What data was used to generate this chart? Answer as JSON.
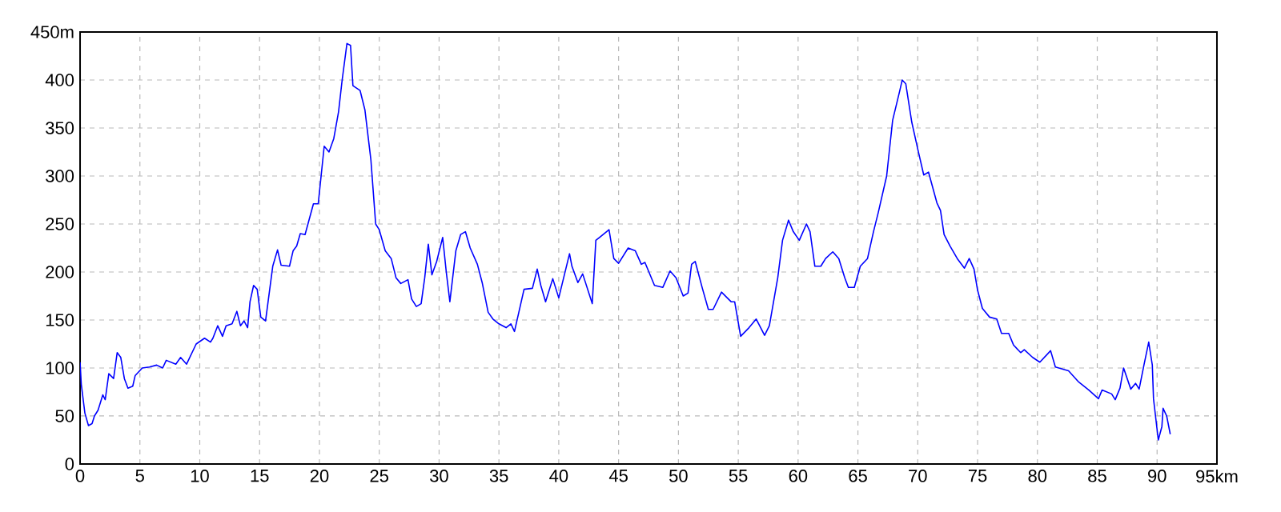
{
  "chart_data": {
    "type": "line",
    "grid": true,
    "marker": "none",
    "line_style": "solid",
    "xlim": [
      0,
      95
    ],
    "ylim": [
      0,
      450
    ],
    "xticks": [
      0,
      5,
      10,
      15,
      20,
      25,
      30,
      35,
      40,
      45,
      50,
      55,
      60,
      65,
      70,
      75,
      80,
      85,
      90,
      {
        "value": 95,
        "label": "95km"
      }
    ],
    "yticks": [
      0,
      50,
      100,
      150,
      200,
      250,
      300,
      350,
      400,
      {
        "value": 450,
        "label": "450m"
      }
    ],
    "series": [
      {
        "color": "#0000ff",
        "x": [
          0,
          0.1,
          0.4,
          0.7,
          1.0,
          1.2,
          1.5,
          1.9,
          2.1,
          2.4,
          2.8,
          3.1,
          3.4,
          3.7,
          4.0,
          4.4,
          4.6,
          5.2,
          5.8,
          6.4,
          6.9,
          7.2,
          8.0,
          8.4,
          8.9,
          9.7,
          10.4,
          10.9,
          11.1,
          11.5,
          11.9,
          12.2,
          12.7,
          13.1,
          13.4,
          13.7,
          14.0,
          14.2,
          14.5,
          14.8,
          15.1,
          15.5,
          16.1,
          16.5,
          16.8,
          17.5,
          17.8,
          18.1,
          18.4,
          18.8,
          19.5,
          19.9,
          20.4,
          20.8,
          21.2,
          21.6,
          21.9,
          22.3,
          22.6,
          22.8,
          23.4,
          23.8,
          24.3,
          24.7,
          25.0,
          25.5,
          26.0,
          26.4,
          26.8,
          27.4,
          27.7,
          28.1,
          28.5,
          28.8,
          29.1,
          29.4,
          29.8,
          30.3,
          30.6,
          30.9,
          31.4,
          31.8,
          32.2,
          32.6,
          33.2,
          33.6,
          34.1,
          34.5,
          35.0,
          35.6,
          36.0,
          36.3,
          37.1,
          37.8,
          38.2,
          38.5,
          38.9,
          39.5,
          40.0,
          40.9,
          41.1,
          41.6,
          42.0,
          42.8,
          43.1,
          43.4,
          44.2,
          44.6,
          45.0,
          45.8,
          46.4,
          46.9,
          47.2,
          48.0,
          48.7,
          49.3,
          49.8,
          50.4,
          50.8,
          51.1,
          51.4,
          52.0,
          52.5,
          52.9,
          53.6,
          54.4,
          54.7,
          55.2,
          55.9,
          56.5,
          57.2,
          57.6,
          58.3,
          58.7,
          59.2,
          59.6,
          60.1,
          60.7,
          61.0,
          61.4,
          61.9,
          62.3,
          62.9,
          63.4,
          63.9,
          64.2,
          64.7,
          65.2,
          65.8,
          66.3,
          66.7,
          67.4,
          67.9,
          68.5,
          68.7,
          69.0,
          69.5,
          70.0,
          70.5,
          70.9,
          71.6,
          71.9,
          72.2,
          72.7,
          73.3,
          73.9,
          74.3,
          74.7,
          75.0,
          75.4,
          76.0,
          76.6,
          77.0,
          77.6,
          78.0,
          78.6,
          78.9,
          79.6,
          80.2,
          81.1,
          81.5,
          82.6,
          83.4,
          84.3,
          85.1,
          85.4,
          86.2,
          86.5,
          86.9,
          87.2,
          87.8,
          88.2,
          88.5,
          88.9,
          89.3,
          89.6,
          89.7,
          90.1,
          90.4,
          90.5,
          90.8,
          91.1
        ],
        "values": [
          106,
          83,
          53,
          40,
          42,
          50,
          56,
          72,
          67,
          94,
          89,
          116,
          111,
          89,
          79,
          81,
          92,
          100,
          101,
          103,
          100,
          108,
          104,
          111,
          104,
          125,
          131,
          127,
          131,
          144,
          133,
          144,
          146,
          159,
          144,
          149,
          142,
          169,
          186,
          182,
          153,
          149,
          206,
          223,
          207,
          206,
          222,
          227,
          240,
          239,
          271,
          271,
          331,
          325,
          339,
          367,
          400,
          438,
          436,
          394,
          389,
          369,
          317,
          250,
          244,
          222,
          214,
          194,
          188,
          192,
          172,
          164,
          167,
          194,
          229,
          197,
          211,
          236,
          200,
          169,
          222,
          239,
          242,
          225,
          208,
          189,
          158,
          151,
          146,
          142,
          146,
          138,
          182,
          183,
          203,
          186,
          169,
          193,
          173,
          219,
          206,
          189,
          198,
          167,
          233,
          236,
          244,
          214,
          209,
          225,
          222,
          208,
          210,
          186,
          184,
          201,
          194,
          175,
          178,
          208,
          211,
          183,
          161,
          161,
          179,
          169,
          169,
          133,
          142,
          151,
          134,
          144,
          194,
          233,
          254,
          242,
          233,
          250,
          242,
          206,
          206,
          214,
          221,
          214,
          194,
          184,
          184,
          206,
          214,
          242,
          262,
          300,
          358,
          389,
          400,
          396,
          356,
          328,
          301,
          304,
          272,
          264,
          239,
          227,
          214,
          204,
          214,
          203,
          181,
          162,
          153,
          151,
          136,
          136,
          124,
          116,
          119,
          111,
          106,
          118,
          101,
          97,
          86,
          77,
          68,
          77,
          73,
          67,
          79,
          100,
          78,
          84,
          78,
          103,
          127,
          103,
          68,
          25,
          39,
          58,
          50,
          31
        ]
      }
    ]
  }
}
